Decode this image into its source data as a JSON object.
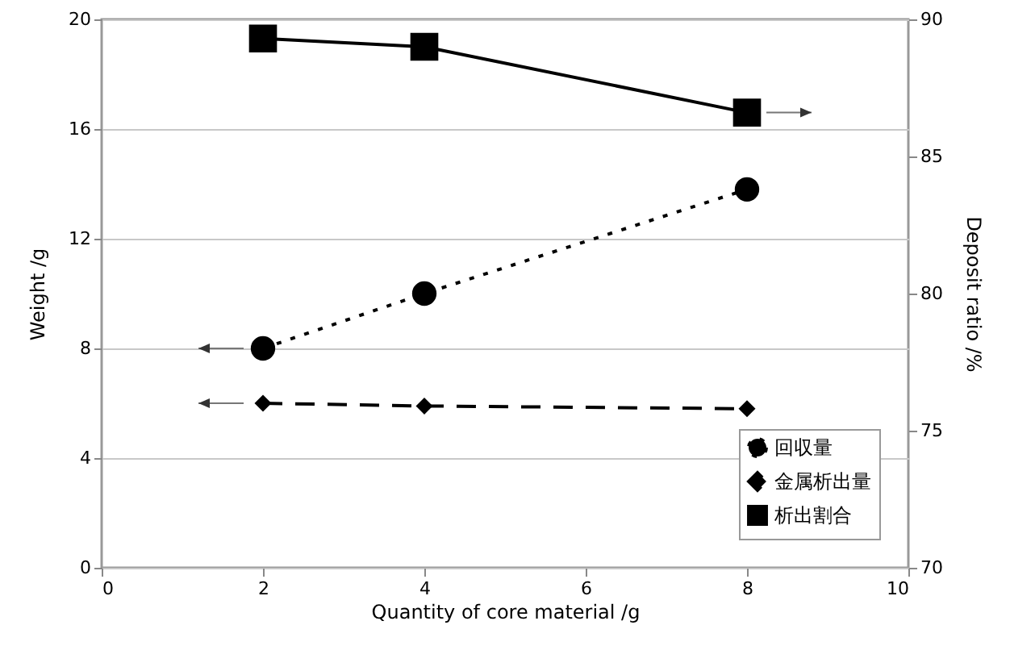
{
  "chart_data": {
    "type": "line",
    "xlabel": "Quantity of core material /g",
    "ylabel": "Weight /g",
    "y2label": "Deposit ratio /%",
    "x": [
      2,
      4,
      8
    ],
    "series": [
      {
        "name": "回収量",
        "color": "#000000",
        "values": [
          8.0,
          10.0,
          13.8
        ],
        "marker": "circle",
        "line_style": "dotted"
      },
      {
        "name": "金属析出量",
        "color": "#000000",
        "values": [
          6.0,
          5.9,
          5.8
        ],
        "marker": "diamond",
        "line_style": "dashed"
      },
      {
        "name": "析出割合",
        "color": "#000000",
        "values": [
          89.3,
          89.0,
          86.6
        ],
        "marker": "square",
        "line_style": "solid",
        "axis": "y2"
      }
    ],
    "xlim": [
      0,
      10
    ],
    "xticks": [
      0,
      2,
      4,
      6,
      8,
      10
    ],
    "ylim": [
      0,
      20
    ],
    "yticks": [
      0,
      4,
      8,
      12,
      16,
      20
    ],
    "y2lim": [
      70,
      90
    ],
    "y2ticks": [
      70,
      75,
      80,
      85,
      90
    ],
    "grid": "y",
    "legend": "bottom right"
  }
}
